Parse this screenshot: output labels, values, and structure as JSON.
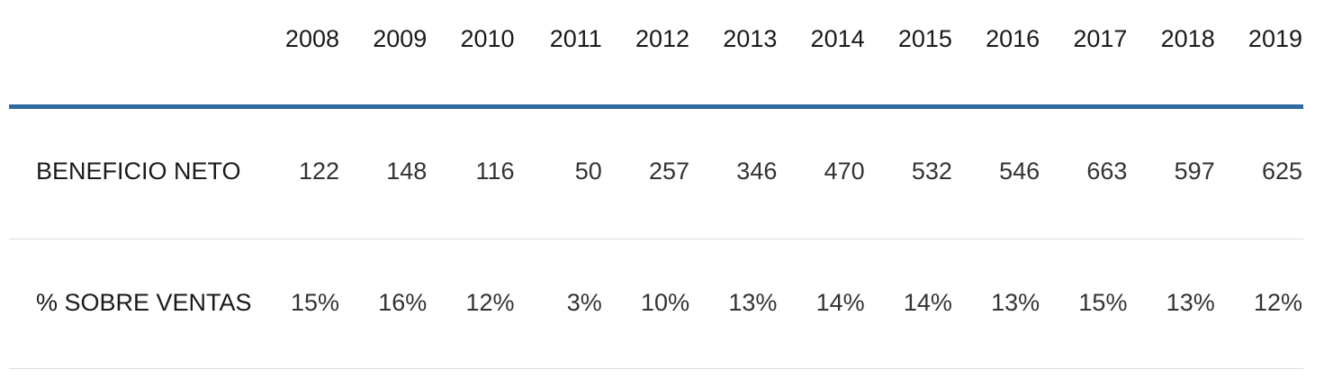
{
  "table": {
    "header": [
      "2008",
      "2009",
      "2010",
      "2011",
      "2012",
      "2013",
      "2014",
      "2015",
      "2016",
      "2017",
      "2018",
      "2019"
    ],
    "rows": [
      {
        "label": "BENEFICIO NETO",
        "cells": [
          "122",
          "148",
          "116",
          "50",
          "257",
          "346",
          "470",
          "532",
          "546",
          "663",
          "597",
          "625"
        ]
      },
      {
        "label": "% SOBRE VENTAS",
        "cells": [
          "15%",
          "16%",
          "12%",
          "3%",
          "10%",
          "13%",
          "14%",
          "14%",
          "13%",
          "15%",
          "13%",
          "12%"
        ]
      }
    ]
  }
}
